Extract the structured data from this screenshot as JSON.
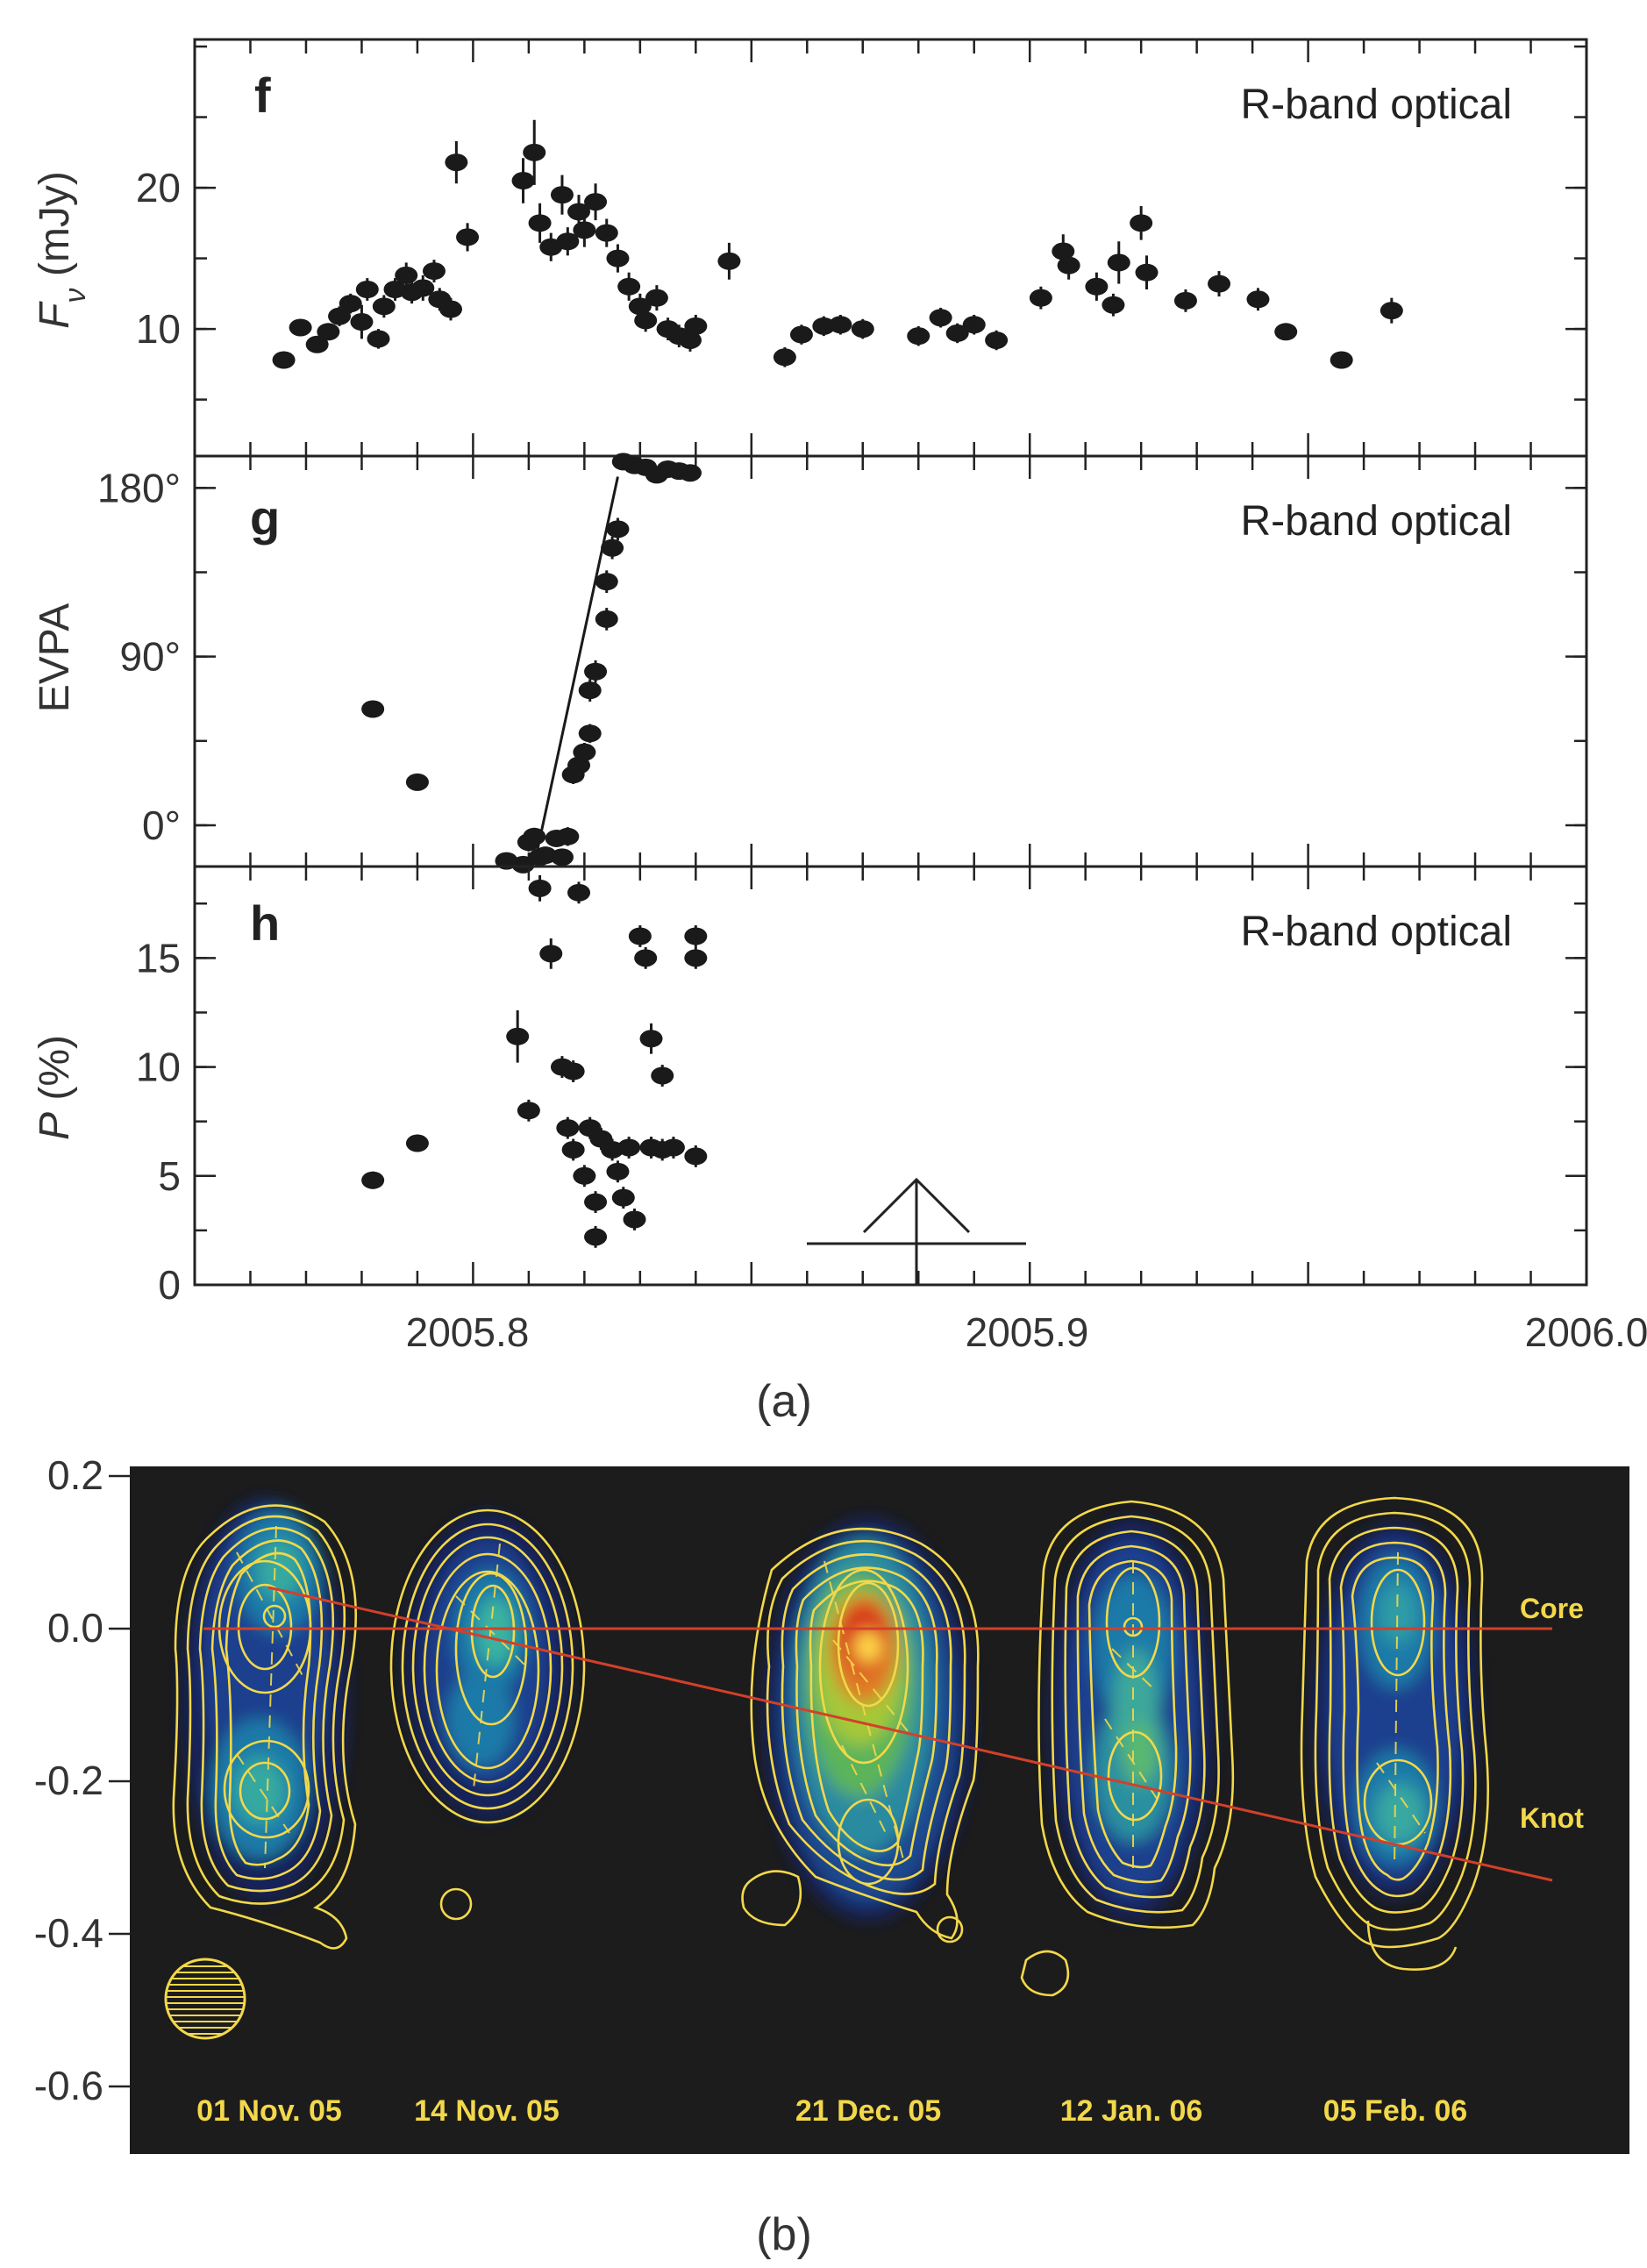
{
  "chart_data": [
    {
      "type": "scatter",
      "panel": "f",
      "label": "R-band optical",
      "ylabel": "F_ν (mJy)",
      "ylabel_main": "F",
      "ylabel_sub": "ν",
      "ylabel_unit": " (mJy)",
      "xlim": [
        2005.75,
        2006.0
      ],
      "ylim": [
        1,
        30.5
      ],
      "yticks": [
        10,
        20
      ],
      "series": [
        {
          "x": [
            2005.766,
            2005.769,
            2005.772,
            2005.774,
            2005.776,
            2005.778,
            2005.78,
            2005.781,
            2005.783,
            2005.784,
            2005.786,
            2005.788,
            2005.789,
            2005.791,
            2005.793,
            2005.794,
            2005.796,
            2005.797,
            2005.799,
            2005.809,
            2005.811,
            2005.812,
            2005.814,
            2005.816,
            2005.817,
            2005.819,
            2005.82,
            2005.822,
            2005.824,
            2005.826,
            2005.828,
            2005.83,
            2005.831,
            2005.833,
            2005.835,
            2005.837,
            2005.839,
            2005.84,
            2005.846,
            2005.856,
            2005.859,
            2005.863,
            2005.866,
            2005.87,
            2005.88,
            2005.884,
            2005.887,
            2005.89,
            2005.894,
            2005.902,
            2005.906,
            2005.907,
            2005.912,
            2005.915,
            2005.916,
            2005.92,
            2005.921,
            2005.928,
            2005.934,
            2005.941,
            2005.946,
            2005.956,
            2005.965
          ],
          "y": [
            7.8,
            10.1,
            8.9,
            9.8,
            10.9,
            11.8,
            10.5,
            12.8,
            9.3,
            11.6,
            12.8,
            13.8,
            12.6,
            12.9,
            14.1,
            12.1,
            11.4,
            21.8,
            16.5,
            20.5,
            22.5,
            17.5,
            15.8,
            19.5,
            16.2,
            18.3,
            17.0,
            19.0,
            16.8,
            15.0,
            13.0,
            11.6,
            10.6,
            12.2,
            10.0,
            9.5,
            9.2,
            10.2,
            14.8,
            8.0,
            9.6,
            10.2,
            10.3,
            10.0,
            9.5,
            10.8,
            9.7,
            10.3,
            9.2,
            12.2,
            15.5,
            14.5,
            13.0,
            11.7,
            14.7,
            17.5,
            14.0,
            12.0,
            13.2,
            12.1,
            9.8,
            7.8,
            11.3
          ],
          "yerr": [
            0.6,
            0.6,
            0.6,
            0.6,
            0.7,
            0.7,
            1.2,
            0.8,
            0.7,
            0.8,
            0.8,
            0.9,
            0.8,
            0.9,
            0.8,
            0.8,
            0.8,
            1.5,
            1.0,
            1.6,
            2.3,
            1.4,
            1.0,
            1.4,
            1.0,
            1.2,
            1.2,
            1.3,
            1.0,
            1.0,
            1.0,
            0.9,
            0.8,
            0.9,
            0.8,
            0.8,
            0.8,
            0.8,
            1.3,
            0.7,
            0.7,
            0.7,
            0.7,
            0.7,
            0.7,
            0.7,
            0.7,
            0.7,
            0.7,
            0.8,
            1.2,
            1.0,
            1.0,
            0.8,
            1.5,
            1.2,
            1.2,
            0.8,
            0.9,
            0.8,
            0.6,
            0.6,
            0.9
          ]
        }
      ]
    },
    {
      "type": "scatter",
      "panel": "g",
      "label": "R-band optical",
      "ylabel": "EVPA",
      "xlim": [
        2005.75,
        2006.0
      ],
      "ylim": [
        -22,
        197
      ],
      "yticks": [
        0,
        90,
        180
      ],
      "ytick_labels": [
        "0°",
        "90°",
        "180°"
      ],
      "series": [
        {
          "x": [
            2005.782,
            2005.79,
            2005.806,
            2005.809,
            2005.81,
            2005.811,
            2005.812,
            2005.813,
            2005.815,
            2005.816,
            2005.817,
            2005.818,
            2005.819,
            2005.82,
            2005.821,
            2005.821,
            2005.822,
            2005.824,
            2005.824,
            2005.825,
            2005.826,
            2005.827,
            2005.829,
            2005.831,
            2005.833,
            2005.835,
            2005.837,
            2005.839
          ],
          "y": [
            62,
            23,
            -19,
            -21,
            -9,
            -6,
            -17,
            -16,
            -7,
            -17,
            -6,
            27,
            32,
            39,
            49,
            72,
            82,
            110,
            130,
            148,
            158,
            194,
            192,
            191,
            187,
            190,
            189,
            188
          ],
          "yerr": [
            4,
            4,
            4,
            4,
            5,
            4,
            4,
            4,
            4,
            4,
            5,
            5,
            5,
            5,
            5,
            6,
            6,
            6,
            6,
            6,
            6,
            4,
            4,
            4,
            4,
            4,
            4,
            4
          ]
        }
      ],
      "fit_line": {
        "x": [
          2005.811,
          2005.826
        ],
        "y": [
          -21,
          186
        ]
      }
    },
    {
      "type": "scatter",
      "panel": "h",
      "label": "R-band optical",
      "ylabel": "P (%)",
      "ylabel_main": "P",
      "ylabel_unit": " (%)",
      "xlim": [
        2005.75,
        2006.0
      ],
      "ylim": [
        0,
        19.2
      ],
      "yticks": [
        0,
        5,
        10,
        15
      ],
      "series": [
        {
          "x": [
            2005.782,
            2005.79,
            2005.808,
            2005.81,
            2005.812,
            2005.814,
            2005.816,
            2005.817,
            2005.818,
            2005.818,
            2005.819,
            2005.82,
            2005.821,
            2005.822,
            2005.822,
            2005.823,
            2005.825,
            2005.826,
            2005.827,
            2005.828,
            2005.829,
            2005.83,
            2005.831,
            2005.832,
            2005.832,
            2005.834,
            2005.834,
            2005.836,
            2005.84,
            2005.84,
            2005.84
          ],
          "y": [
            4.8,
            6.5,
            11.4,
            8.0,
            18.2,
            15.2,
            10.0,
            7.2,
            6.2,
            9.8,
            18.0,
            5.0,
            7.2,
            2.2,
            3.8,
            6.7,
            6.2,
            5.2,
            4.0,
            6.3,
            3.0,
            16.0,
            15.0,
            6.3,
            11.3,
            9.6,
            6.2,
            6.3,
            16.0,
            15.0,
            5.9
          ],
          "yerr": [
            0.4,
            0.4,
            1.2,
            0.5,
            0.6,
            0.7,
            0.5,
            0.5,
            0.5,
            0.5,
            0.5,
            0.5,
            0.5,
            0.5,
            0.5,
            0.5,
            0.5,
            0.5,
            0.5,
            0.5,
            0.5,
            0.5,
            0.5,
            0.5,
            0.7,
            0.5,
            0.5,
            0.5,
            0.5,
            0.5,
            0.5
          ]
        }
      ]
    },
    {
      "type": "heatmap",
      "panel": "b",
      "yticks": [
        0.2,
        0.0,
        -0.2,
        -0.4,
        -0.6
      ],
      "ytick_labels": [
        "0.2",
        "0.0",
        "-0.2",
        "-0.4",
        "-0.6"
      ],
      "ylim": [
        -0.7,
        0.2
      ],
      "epochs": [
        "01 Nov. 05",
        "14 Nov. 05",
        "21 Dec. 05",
        "12 Jan. 06",
        "05 Feb. 06"
      ],
      "knot_offsets": [
        -0.21,
        -0.13,
        -0.07,
        -0.18,
        -0.26
      ],
      "annotations": [
        "Core",
        "Knot"
      ]
    }
  ],
  "captions": {
    "a": "(a)",
    "b": "(b)"
  },
  "xaxis": {
    "tick_labels": [
      "2005.8",
      "2005.9",
      "2006.0"
    ]
  },
  "colors": {
    "points": "#1a1a1a",
    "map_background": "#1c1c1c",
    "contours": "#f2d84a",
    "fit_lines": "#d2402a",
    "axes": "#222222"
  }
}
